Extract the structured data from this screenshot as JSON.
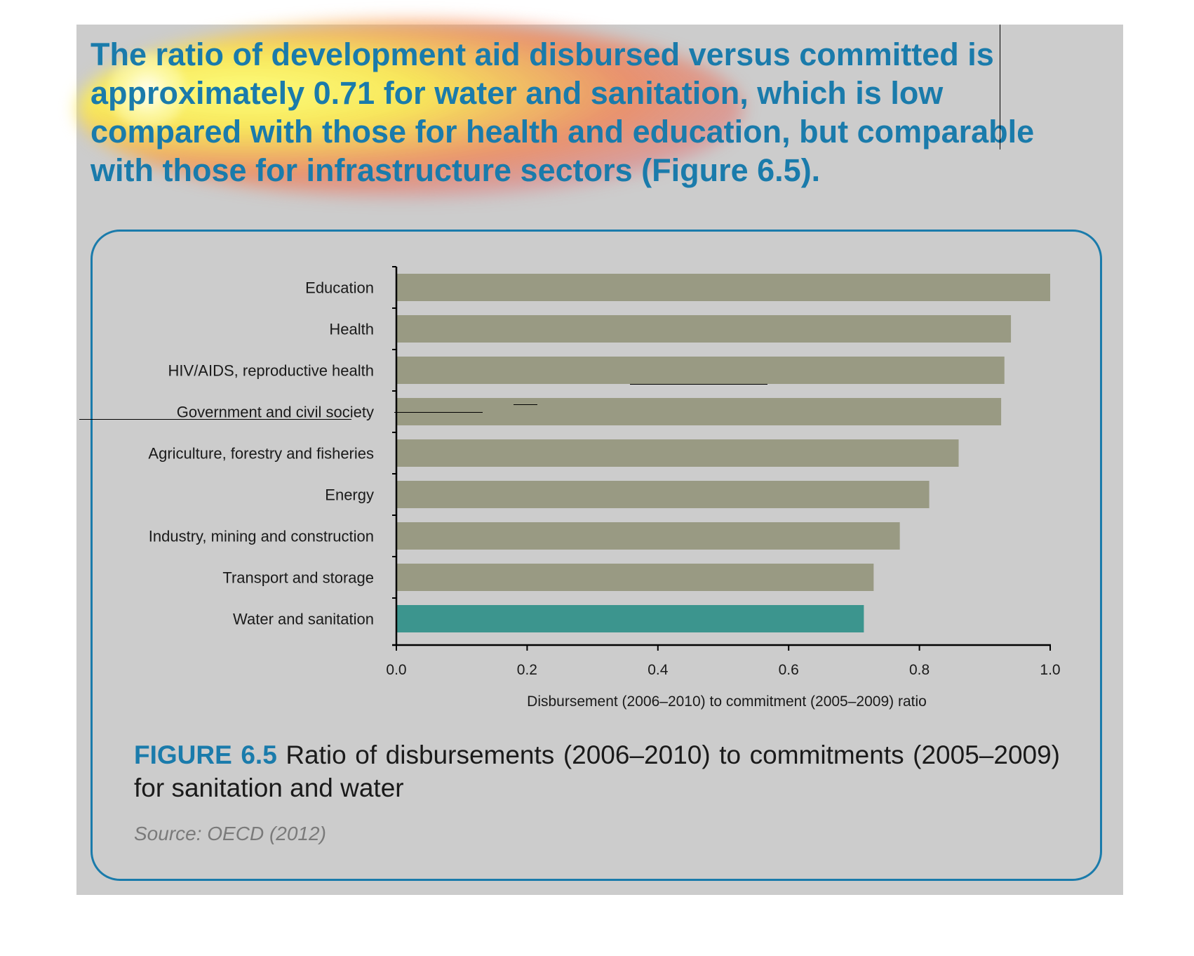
{
  "intro_text": "The ratio of development aid disbursed versus committed is approximately 0.71 for water and sanitation, which is low compared with those for health and education, but comparable with those for infrastructure sectors (Figure 6.5).",
  "figure": {
    "label": "FIGURE 6.5",
    "caption": " Ratio of disbursements (2006–2010) to commitments (2005–2009) for sanitation and water",
    "source": "Source: OECD (2012)"
  },
  "colors": {
    "bar_default": "#999a83",
    "bar_highlight": "#3c958e",
    "accent": "#1a7bab",
    "panel": "#cccccc"
  },
  "chart_data": {
    "type": "bar",
    "orientation": "horizontal",
    "categories": [
      "Education",
      "Health",
      "HIV/AIDS, reproductive health",
      "Government and civil society",
      "Agriculture, forestry and fisheries",
      "Energy",
      "Industry, mining and construction",
      "Transport and storage",
      "Water and sanitation"
    ],
    "values": [
      1.0,
      0.94,
      0.93,
      0.925,
      0.86,
      0.815,
      0.77,
      0.73,
      0.715
    ],
    "highlight_category": "Water and sanitation",
    "xlabel": "Disbursement (2006–2010) to commitment (2005–2009) ratio",
    "ylabel": "",
    "xlim": [
      0,
      1.0
    ],
    "xticks": [
      "0.0",
      "0.2",
      "0.4",
      "0.6",
      "0.8",
      "1.0"
    ],
    "grid": false,
    "legend": "none"
  }
}
